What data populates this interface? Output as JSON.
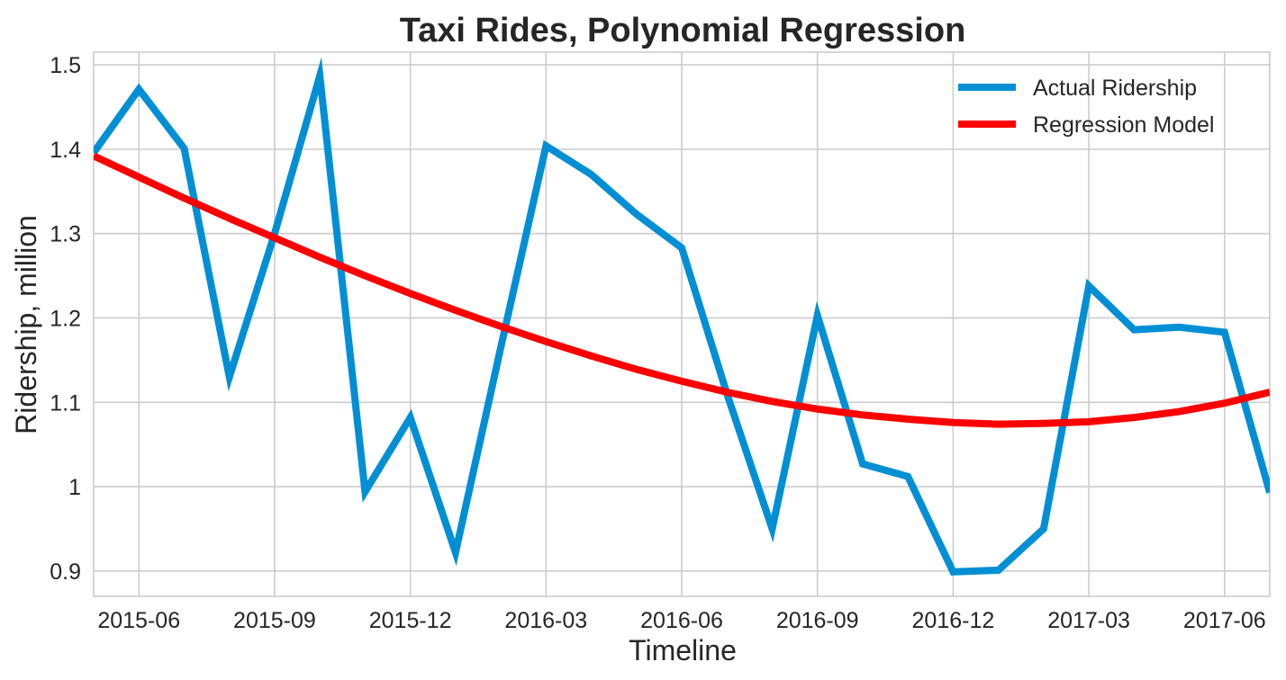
{
  "chart_data": {
    "type": "line",
    "title": "Taxi Rides, Polynomial Regression",
    "xlabel": "Timeline",
    "ylabel": "Ridership, million",
    "x_tick_labels": [
      "2015-06",
      "2015-09",
      "2015-12",
      "2016-03",
      "2016-06",
      "2016-09",
      "2016-12",
      "2017-03",
      "2017-06"
    ],
    "y_tick_labels": [
      "0.9",
      "1",
      "1.1",
      "1.2",
      "1.3",
      "1.4",
      "1.5"
    ],
    "y_ticks": [
      0.9,
      1.0,
      1.1,
      1.2,
      1.3,
      1.4,
      1.5
    ],
    "ylim": [
      0.87,
      1.515
    ],
    "xlim": [
      "2015-05",
      "2017-07"
    ],
    "grid": true,
    "legend_position": "top-right",
    "x": [
      "2015-05",
      "2015-06",
      "2015-07",
      "2015-08",
      "2015-09",
      "2015-10",
      "2015-11",
      "2015-12",
      "2016-01",
      "2016-02",
      "2016-03",
      "2016-04",
      "2016-05",
      "2016-06",
      "2016-07",
      "2016-08",
      "2016-09",
      "2016-10",
      "2016-11",
      "2016-12",
      "2017-01",
      "2017-02",
      "2017-03",
      "2017-04",
      "2017-05",
      "2017-06",
      "2017-07"
    ],
    "series": [
      {
        "name": "Actual Ridership",
        "color": "#008fd5",
        "values": [
          1.396,
          1.471,
          1.401,
          1.13,
          1.3,
          1.487,
          0.994,
          1.082,
          0.922,
          1.165,
          1.404,
          1.37,
          1.323,
          1.283,
          1.11,
          0.95,
          1.203,
          1.027,
          1.012,
          0.899,
          0.901,
          0.95,
          1.238,
          1.186,
          1.189,
          1.183,
          0.993
        ]
      },
      {
        "name": "Regression Model",
        "color": "#fc0000",
        "values": [
          1.392,
          1.367,
          1.342,
          1.318,
          1.295,
          1.272,
          1.25,
          1.229,
          1.209,
          1.19,
          1.172,
          1.155,
          1.139,
          1.125,
          1.112,
          1.101,
          1.092,
          1.085,
          1.08,
          1.076,
          1.074,
          1.075,
          1.077,
          1.082,
          1.089,
          1.099,
          1.112
        ]
      }
    ]
  }
}
